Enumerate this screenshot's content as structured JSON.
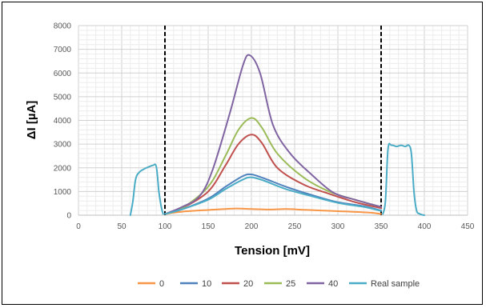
{
  "chart_data": {
    "type": "line",
    "title": "",
    "xlabel": "Tension [mV]",
    "ylabel": "ΔI [µA]",
    "xlim": [
      0,
      450
    ],
    "ylim": [
      0,
      8000
    ],
    "x_ticks": [
      "0",
      "50",
      "100",
      "150",
      "200",
      "250",
      "300",
      "350",
      "400",
      "450"
    ],
    "y_ticks": [
      "0",
      "1000",
      "2000",
      "3000",
      "4000",
      "5000",
      "6000",
      "7000",
      "8000"
    ],
    "x_tick_values": [
      0,
      50,
      100,
      150,
      200,
      250,
      300,
      350,
      400,
      450
    ],
    "y_tick_values": [
      0,
      1000,
      2000,
      3000,
      4000,
      5000,
      6000,
      7000,
      8000
    ],
    "grid": true,
    "legend_position": "bottom",
    "vertical_markers": [
      100,
      350
    ],
    "series": [
      {
        "name": "0",
        "color": "#f79646",
        "points": [
          [
            100,
            50
          ],
          [
            120,
            150
          ],
          [
            150,
            220
          ],
          [
            180,
            280
          ],
          [
            200,
            260
          ],
          [
            220,
            240
          ],
          [
            240,
            260
          ],
          [
            260,
            230
          ],
          [
            280,
            200
          ],
          [
            300,
            170
          ],
          [
            320,
            140
          ],
          [
            340,
            100
          ],
          [
            350,
            50
          ]
        ]
      },
      {
        "name": "10",
        "color": "#4f81bd",
        "points": [
          [
            100,
            50
          ],
          [
            120,
            250
          ],
          [
            150,
            700
          ],
          [
            170,
            1200
          ],
          [
            190,
            1650
          ],
          [
            200,
            1720
          ],
          [
            215,
            1550
          ],
          [
            240,
            1200
          ],
          [
            270,
            850
          ],
          [
            300,
            550
          ],
          [
            330,
            380
          ],
          [
            350,
            200
          ]
        ]
      },
      {
        "name": "20",
        "color": "#c0504d",
        "points": [
          [
            100,
            50
          ],
          [
            120,
            300
          ],
          [
            150,
            1000
          ],
          [
            170,
            2100
          ],
          [
            185,
            3000
          ],
          [
            200,
            3400
          ],
          [
            212,
            3050
          ],
          [
            230,
            2000
          ],
          [
            260,
            1300
          ],
          [
            290,
            900
          ],
          [
            320,
            550
          ],
          [
            350,
            300
          ]
        ]
      },
      {
        "name": "25",
        "color": "#9bbb59",
        "points": [
          [
            100,
            50
          ],
          [
            120,
            300
          ],
          [
            150,
            1200
          ],
          [
            170,
            2500
          ],
          [
            185,
            3600
          ],
          [
            200,
            4100
          ],
          [
            212,
            3700
          ],
          [
            230,
            2600
          ],
          [
            260,
            1600
          ],
          [
            290,
            1000
          ],
          [
            320,
            650
          ],
          [
            350,
            350
          ]
        ]
      },
      {
        "name": "40",
        "color": "#8064a2",
        "points": [
          [
            100,
            50
          ],
          [
            120,
            350
          ],
          [
            140,
            800
          ],
          [
            155,
            1900
          ],
          [
            175,
            4300
          ],
          [
            190,
            6300
          ],
          [
            198,
            6750
          ],
          [
            210,
            6000
          ],
          [
            225,
            3800
          ],
          [
            245,
            2600
          ],
          [
            270,
            1700
          ],
          [
            295,
            950
          ],
          [
            320,
            650
          ],
          [
            350,
            350
          ]
        ]
      },
      {
        "name": "Real sample",
        "color": "#4bacc6",
        "points": [
          [
            100,
            50
          ],
          [
            120,
            250
          ],
          [
            150,
            650
          ],
          [
            170,
            1100
          ],
          [
            190,
            1500
          ],
          [
            200,
            1600
          ],
          [
            215,
            1450
          ],
          [
            240,
            1100
          ],
          [
            270,
            800
          ],
          [
            300,
            520
          ],
          [
            330,
            350
          ],
          [
            350,
            180
          ]
        ]
      },
      {
        "name": "",
        "color": "#4bacc6",
        "points": [
          [
            60,
            0
          ],
          [
            63,
            600
          ],
          [
            66,
            1500
          ],
          [
            70,
            1800
          ],
          [
            76,
            1950
          ],
          [
            82,
            2050
          ],
          [
            86,
            2100
          ],
          [
            90,
            2050
          ],
          [
            93,
            1000
          ],
          [
            96,
            300
          ],
          [
            98,
            50
          ]
        ]
      },
      {
        "name": "",
        "color": "#4bacc6",
        "points": [
          [
            352,
            50
          ],
          [
            355,
            600
          ],
          [
            358,
            2800
          ],
          [
            362,
            2950
          ],
          [
            368,
            2900
          ],
          [
            373,
            2950
          ],
          [
            378,
            2900
          ],
          [
            382,
            2950
          ],
          [
            385,
            2600
          ],
          [
            388,
            1000
          ],
          [
            391,
            200
          ],
          [
            395,
            50
          ],
          [
            400,
            0
          ]
        ]
      }
    ],
    "legend": [
      "0",
      "10",
      "20",
      "25",
      "40",
      "Real sample"
    ]
  }
}
